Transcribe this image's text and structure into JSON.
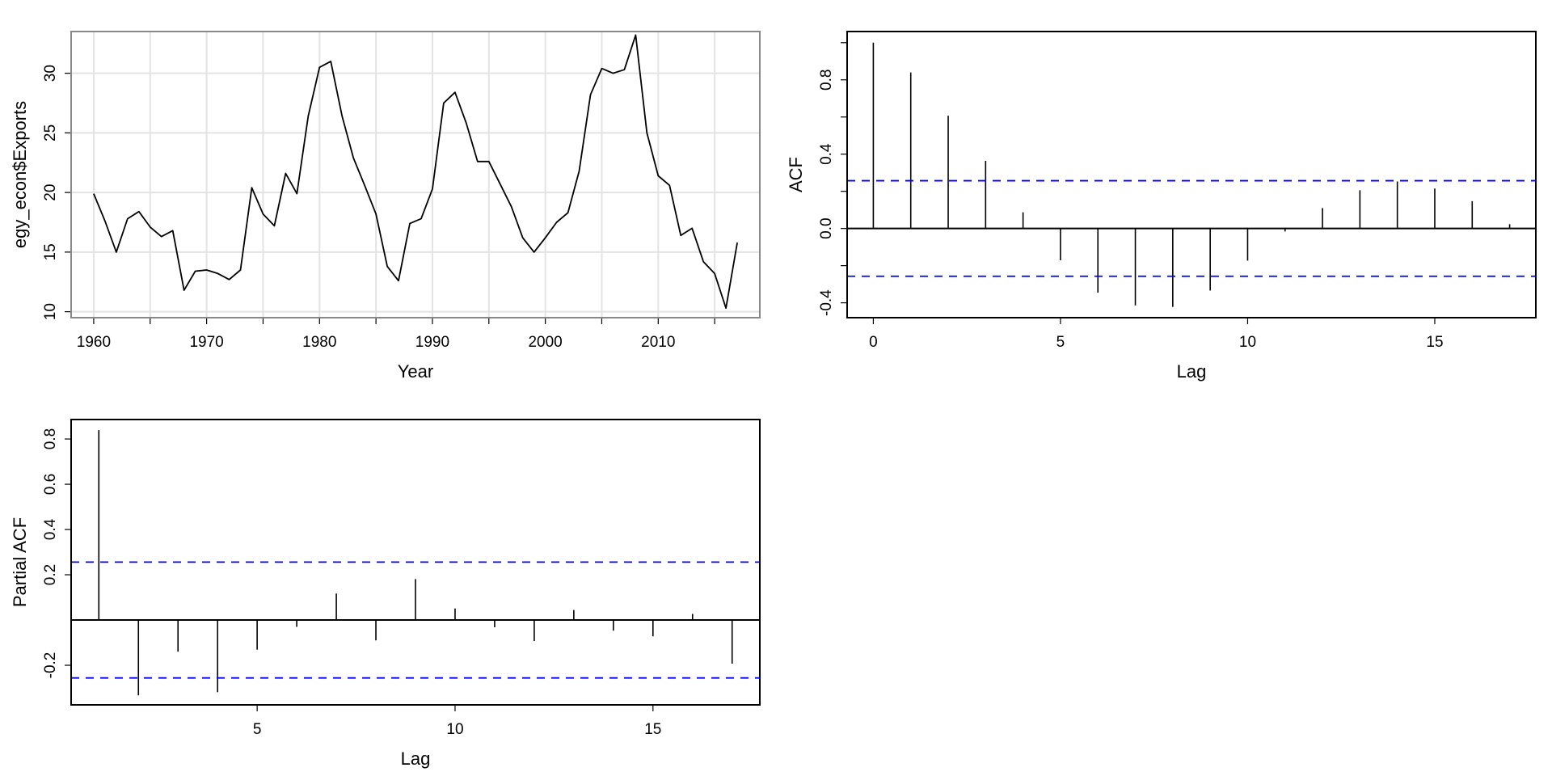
{
  "chart_data": [
    {
      "type": "line",
      "title": "",
      "xlabel": "Year",
      "ylabel": "egy_econ$Exports",
      "xlim": [
        1958,
        2019
      ],
      "ylim": [
        9.5,
        33.5
      ],
      "grid": true,
      "x_ticks": [
        1960,
        1970,
        1980,
        1990,
        2000,
        2010
      ],
      "y_ticks": [
        10,
        15,
        20,
        25,
        30
      ],
      "x": [
        1960,
        1961,
        1962,
        1963,
        1964,
        1965,
        1966,
        1967,
        1968,
        1969,
        1970,
        1971,
        1972,
        1973,
        1974,
        1975,
        1976,
        1977,
        1978,
        1979,
        1980,
        1981,
        1982,
        1983,
        1984,
        1985,
        1986,
        1987,
        1988,
        1989,
        1990,
        1991,
        1992,
        1993,
        1994,
        1995,
        1996,
        1997,
        1998,
        1999,
        2000,
        2001,
        2002,
        2003,
        2004,
        2005,
        2006,
        2007,
        2008,
        2009,
        2010,
        2011,
        2012,
        2013,
        2014,
        2015,
        2016,
        2017
      ],
      "y": [
        19.9,
        17.6,
        15.0,
        17.8,
        18.4,
        17.1,
        16.3,
        16.8,
        11.8,
        13.4,
        13.5,
        13.2,
        12.7,
        13.5,
        20.4,
        18.2,
        17.2,
        21.6,
        19.9,
        26.4,
        30.5,
        31.0,
        26.4,
        22.9,
        20.6,
        18.2,
        13.8,
        12.6,
        17.4,
        17.8,
        20.3,
        27.5,
        28.4,
        25.8,
        22.6,
        22.6,
        20.7,
        18.8,
        16.2,
        15.0,
        16.2,
        17.5,
        18.3,
        21.8,
        28.2,
        30.4,
        30.0,
        30.3,
        33.2,
        25.0,
        21.4,
        20.6,
        16.4,
        17.0,
        14.2,
        13.2,
        10.3,
        15.8
      ]
    },
    {
      "type": "bar",
      "title": "",
      "xlabel": "Lag",
      "ylabel": "ACF",
      "xlim": [
        -0.7,
        17.7
      ],
      "ylim": [
        -0.48,
        1.06
      ],
      "x_ticks": [
        0,
        5,
        10,
        15
      ],
      "y_ticks": [
        "-0.4",
        "0.0",
        "0.4",
        "0.8"
      ],
      "y_minor_ticks": [
        -0.2,
        0.2,
        0.6,
        1.0
      ],
      "confidence_bound": 0.257,
      "lags": [
        0,
        1,
        2,
        3,
        4,
        5,
        6,
        7,
        8,
        9,
        10,
        11,
        12,
        13,
        14,
        15,
        16,
        17
      ],
      "values": [
        1.0,
        0.84,
        0.607,
        0.364,
        0.087,
        -0.171,
        -0.345,
        -0.414,
        -0.422,
        -0.334,
        -0.173,
        -0.016,
        0.11,
        0.206,
        0.253,
        0.215,
        0.147,
        0.023
      ]
    },
    {
      "type": "bar",
      "title": "",
      "xlabel": "Lag",
      "ylabel": "Partial ACF",
      "xlim": [
        0.3,
        17.7
      ],
      "ylim": [
        -0.375,
        0.886
      ],
      "x_ticks": [
        5,
        10,
        15
      ],
      "y_ticks": [
        "-0.2",
        "0.2",
        "0.4",
        "0.6",
        "0.8"
      ],
      "confidence_bound": 0.256,
      "lags": [
        1,
        2,
        3,
        4,
        5,
        6,
        7,
        8,
        9,
        10,
        11,
        12,
        13,
        14,
        15,
        16,
        17
      ],
      "values": [
        0.839,
        -0.333,
        -0.14,
        -0.319,
        -0.131,
        -0.03,
        0.117,
        -0.09,
        0.181,
        0.051,
        -0.032,
        -0.093,
        0.044,
        -0.047,
        -0.072,
        0.027,
        -0.193
      ]
    }
  ]
}
